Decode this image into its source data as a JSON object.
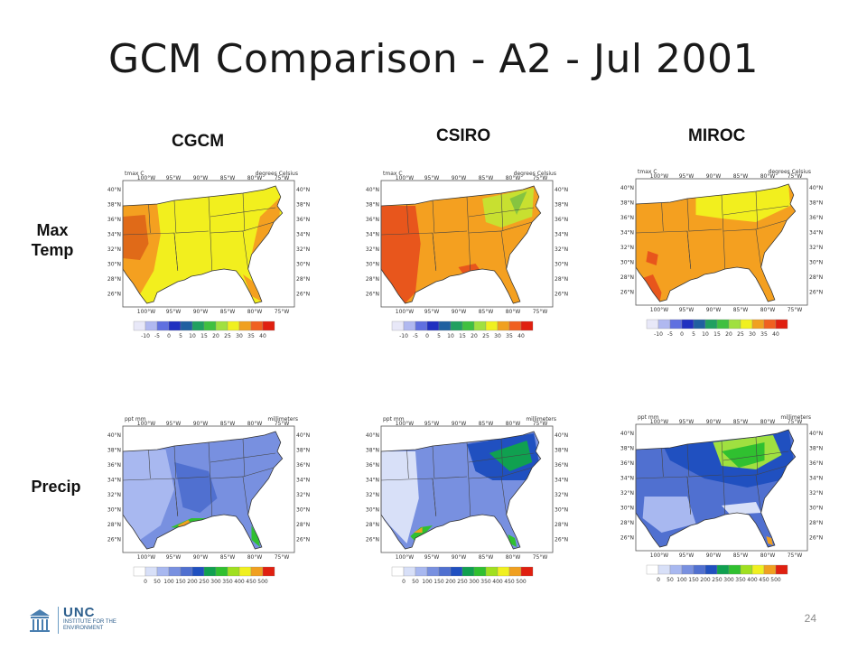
{
  "slide": {
    "title": "GCM Comparison - A2 - Jul 2001",
    "page_number": "24"
  },
  "models": [
    "CGCM",
    "CSIRO",
    "MIROC"
  ],
  "rows": {
    "maxtemp": "Max\nTemp",
    "precip": "Precip"
  },
  "maps": {
    "lon_labels": [
      "100°W",
      "95°W",
      "90°W",
      "85°W",
      "80°W",
      "75°W"
    ],
    "lat_labels": [
      "40°N",
      "38°N",
      "36°N",
      "34°N",
      "32°N",
      "30°N",
      "28°N",
      "26°N"
    ],
    "temp": {
      "var_label": "tmax C",
      "unit_label": "degrees Celsius",
      "scale_labels": [
        "-10",
        "-5",
        "0",
        "5",
        "10",
        "15",
        "20",
        "25",
        "30",
        "35",
        "40"
      ],
      "scale_colors": [
        "#e8e8f8",
        "#b0b8f0",
        "#6070e0",
        "#2030c0",
        "#2060a0",
        "#20a060",
        "#40c040",
        "#a0e040",
        "#f0f020",
        "#f0a020",
        "#f06020",
        "#e02010"
      ]
    },
    "precip": {
      "var_label": "ppt mm",
      "unit_label": "millimeters",
      "scale_labels": [
        "0",
        "50",
        "100",
        "150",
        "200",
        "250",
        "300",
        "350",
        "400",
        "450",
        "500"
      ],
      "scale_colors": [
        "#ffffff",
        "#d8e0f8",
        "#a8b8f0",
        "#7890e0",
        "#5070d0",
        "#2050c0",
        "#10a050",
        "#30c030",
        "#a0e020",
        "#f0f020",
        "#f0a020",
        "#e02010"
      ]
    }
  },
  "footer": {
    "logo_text": "UNC",
    "logo_subtext": "INSTITUTE FOR THE ENVIRONMENT"
  }
}
